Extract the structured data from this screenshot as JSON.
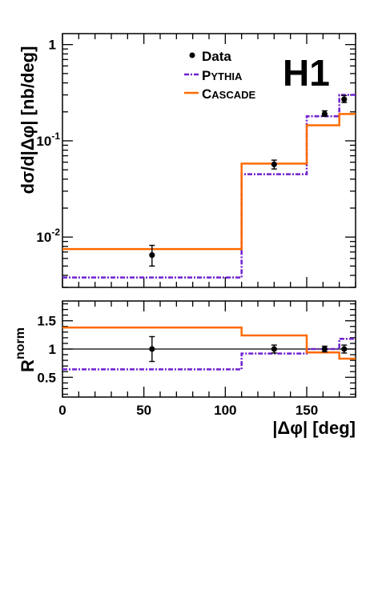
{
  "chart_data": [
    {
      "type": "line",
      "panel": "cross-section",
      "ylabel": "dσ/d|Δφ| [nb/deg]",
      "yscale": "log",
      "ylim": [
        0.003,
        1.3
      ],
      "xlim": [
        0,
        180
      ],
      "y_ticks": [
        {
          "value": 0.01,
          "base": "10",
          "exp": "-2"
        },
        {
          "value": 0.1,
          "base": "10",
          "exp": "-1"
        },
        {
          "value": 1,
          "base": "1",
          "exp": ""
        }
      ],
      "x_ticks": [
        0,
        50,
        100,
        150
      ],
      "logo": "H1",
      "legend_position": "top-center",
      "series": [
        {
          "name": "Data",
          "style": "points",
          "color": "#000000",
          "x": [
            55,
            130,
            161,
            173
          ],
          "y": [
            0.0065,
            0.057,
            0.19,
            0.27
          ],
          "err_low": [
            0.005,
            0.051,
            0.18,
            0.25
          ],
          "err_high": [
            0.0082,
            0.063,
            0.205,
            0.295
          ]
        },
        {
          "name": "Pythia",
          "style": "histogram",
          "color": "#7020d0",
          "edges": [
            0,
            110,
            150,
            170,
            180
          ],
          "values": [
            0.0038,
            0.045,
            0.18,
            0.3
          ]
        },
        {
          "name": "Cascade",
          "style": "histogram",
          "color": "#ff6a00",
          "edges": [
            0,
            110,
            150,
            170,
            180
          ],
          "values": [
            0.0075,
            0.058,
            0.145,
            0.19
          ]
        }
      ]
    },
    {
      "type": "line",
      "panel": "ratio",
      "ylabel_base": "R",
      "ylabel_sup": "norm",
      "xlabel": "|Δφ| [deg]",
      "ylim": [
        0.15,
        1.85
      ],
      "xlim": [
        0,
        180
      ],
      "y_ticks": [
        "0.5",
        "1",
        "1.5"
      ],
      "x_ticks": [
        "0",
        "50",
        "100",
        "150"
      ],
      "reference_line": 1,
      "series": [
        {
          "name": "Data",
          "style": "points",
          "color": "#000000",
          "x": [
            55,
            130,
            161,
            173
          ],
          "y": [
            1.0,
            1.0,
            1.0,
            1.0
          ],
          "err_low": [
            0.78,
            0.93,
            0.95,
            0.93
          ],
          "err_high": [
            1.22,
            1.07,
            1.05,
            1.07
          ]
        },
        {
          "name": "Pythia",
          "style": "histogram",
          "color": "#7020d0",
          "edges": [
            0,
            110,
            150,
            170,
            180
          ],
          "values": [
            0.64,
            0.92,
            1.0,
            1.18
          ]
        },
        {
          "name": "Cascade",
          "style": "histogram",
          "color": "#ff6a00",
          "edges": [
            0,
            110,
            150,
            170,
            180
          ],
          "values": [
            1.38,
            1.24,
            0.94,
            0.83
          ]
        }
      ]
    }
  ],
  "legend": {
    "data_label": "Data",
    "pythia_first": "P",
    "pythia_rest": "YTHIA",
    "cascade_first": "C",
    "cascade_rest": "ASCADE"
  }
}
